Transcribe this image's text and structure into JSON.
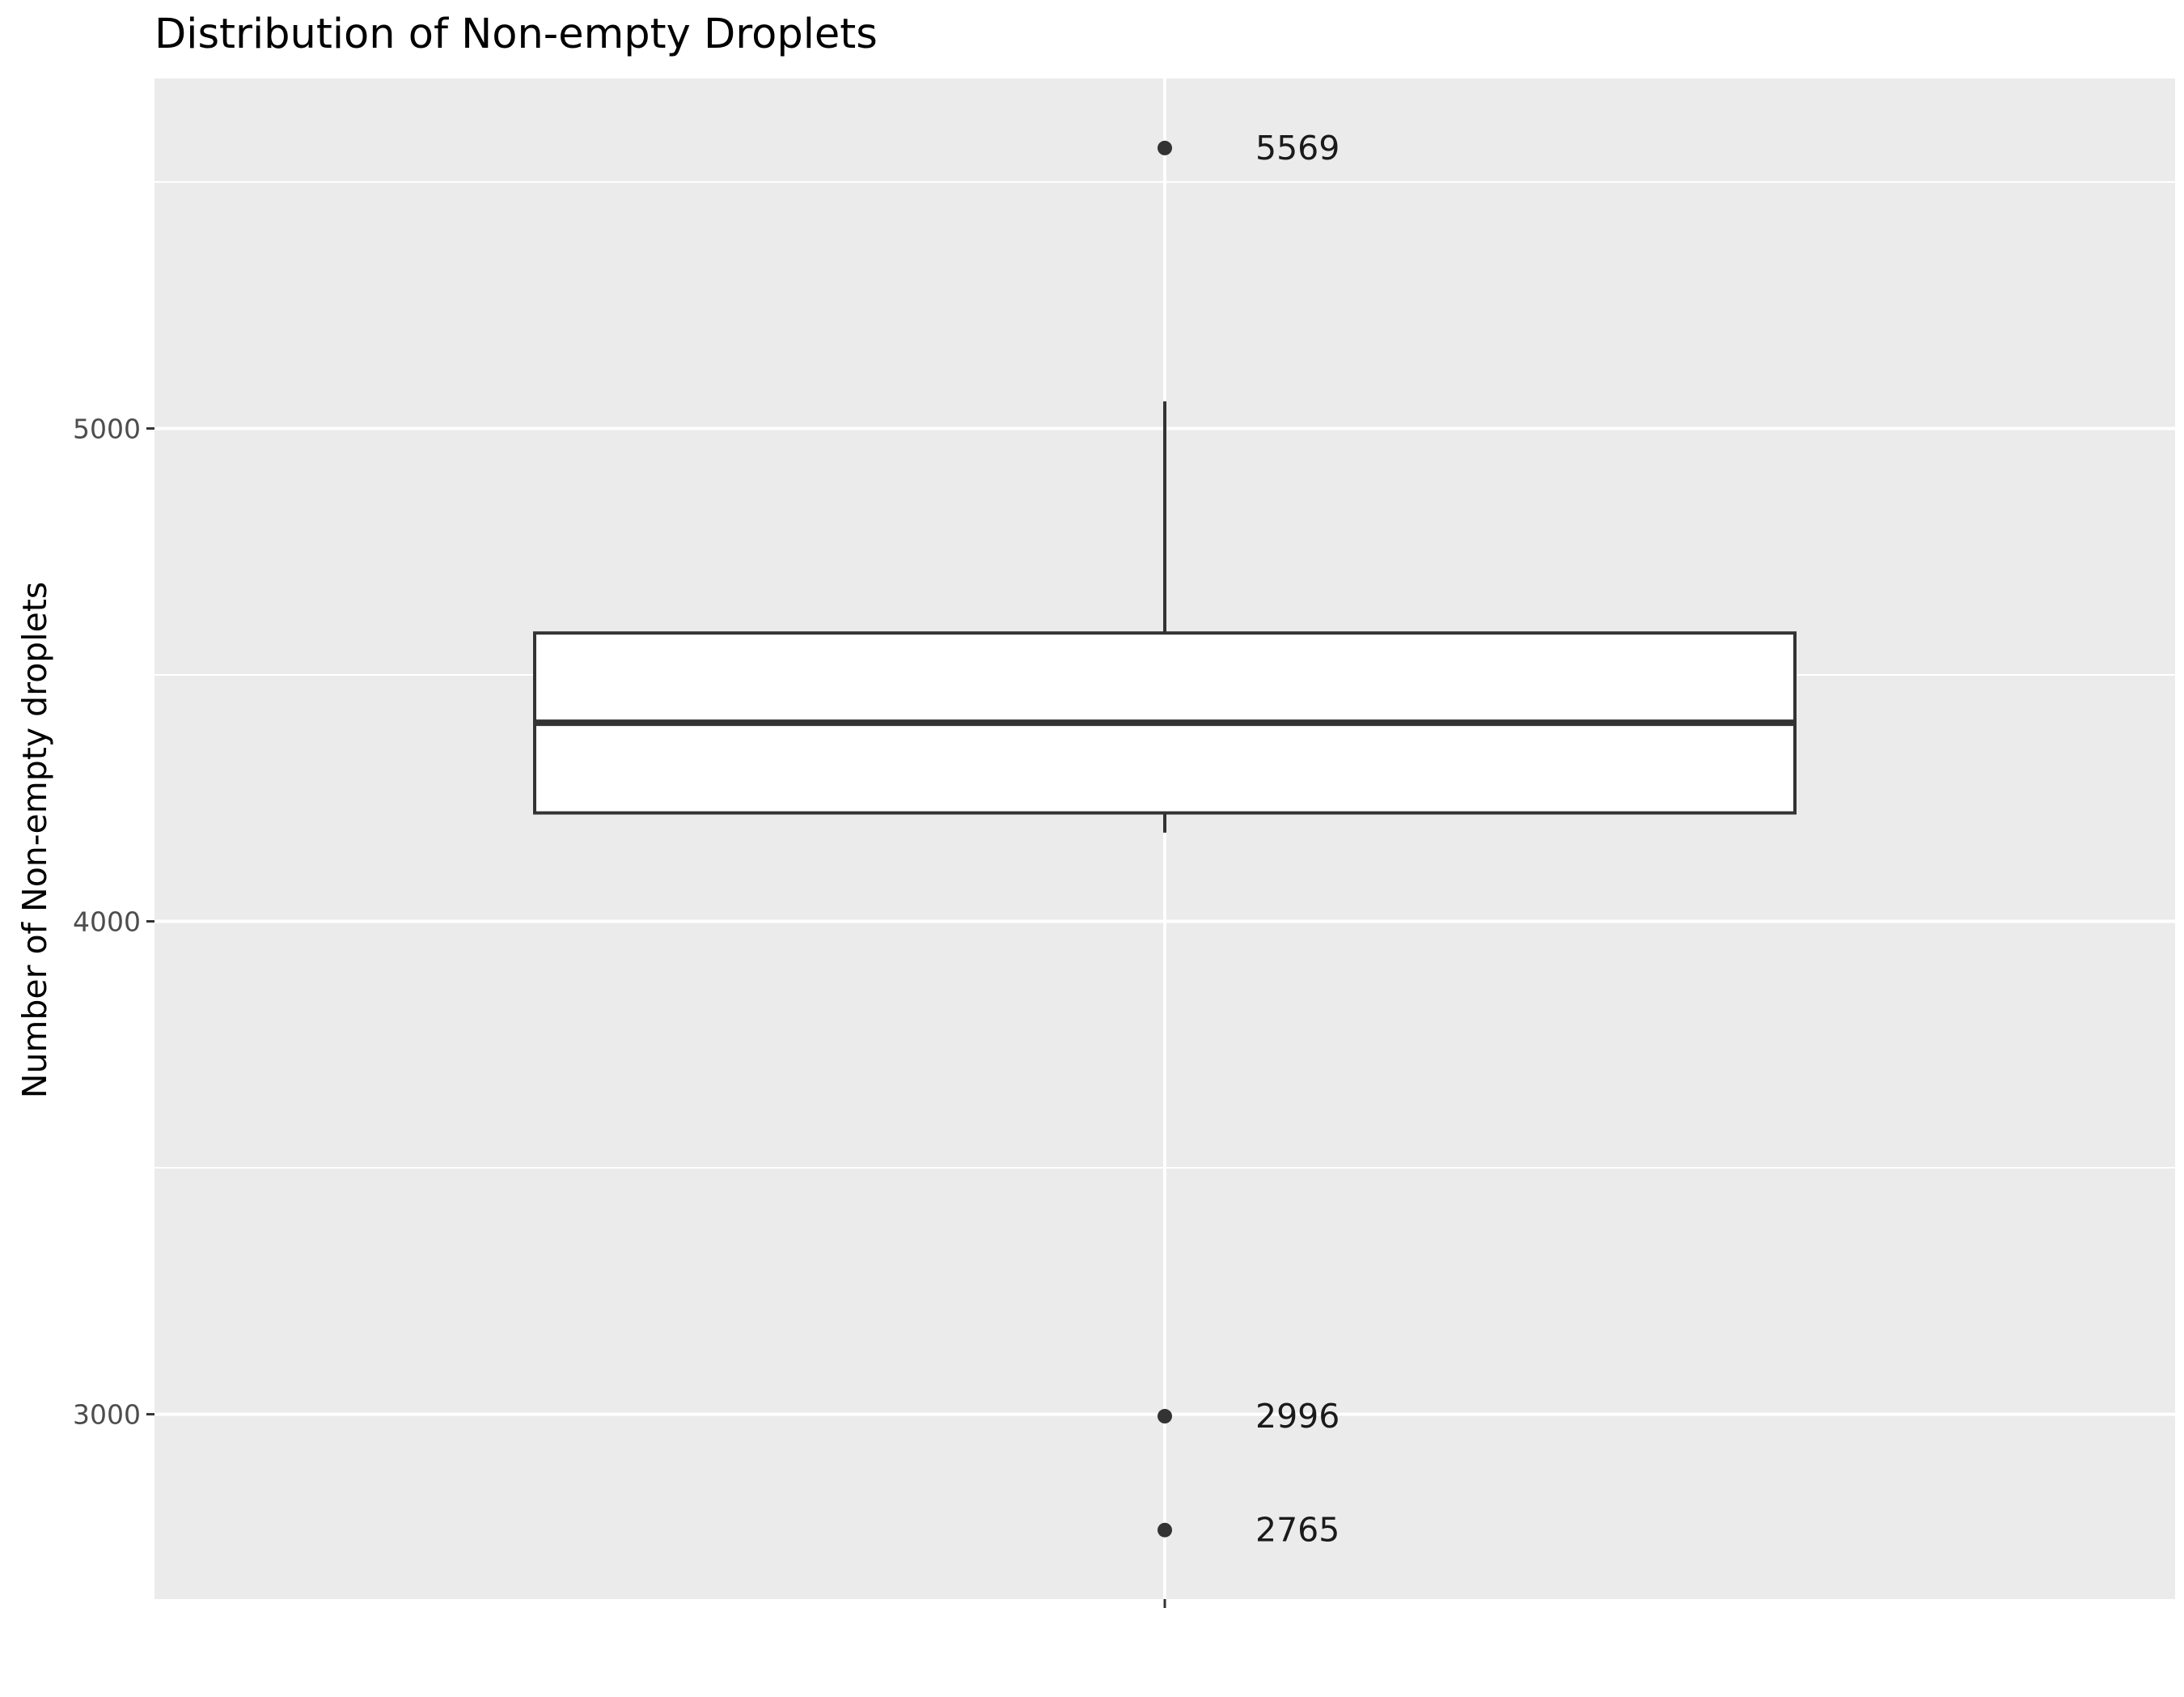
{
  "chart_data": {
    "type": "boxplot",
    "title": "Distribution of Non-empty Droplets",
    "xlabel": "",
    "ylabel": "Number of Non-empty droplets",
    "ylim": [
      2625,
      5710
    ],
    "y_ticks": [
      3000,
      4000,
      5000
    ],
    "y_tick_labels": [
      "3000",
      "4000",
      "5000"
    ],
    "grid": true,
    "box": {
      "lower_whisker": 4180,
      "q1": 4220,
      "median": 4403,
      "q3": 4585,
      "upper_whisker": 5055
    },
    "outliers": [
      5569,
      2996,
      2765
    ],
    "annotations": [
      {
        "value": 5569,
        "text": "5569"
      },
      {
        "value": 2996,
        "text": "2996"
      },
      {
        "value": 2765,
        "text": "2765"
      }
    ],
    "colors": {
      "panel": "#ebebeb",
      "grid": "#ffffff",
      "box_fill": "#ffffff",
      "box_line": "#333333",
      "point": "#333333"
    }
  }
}
